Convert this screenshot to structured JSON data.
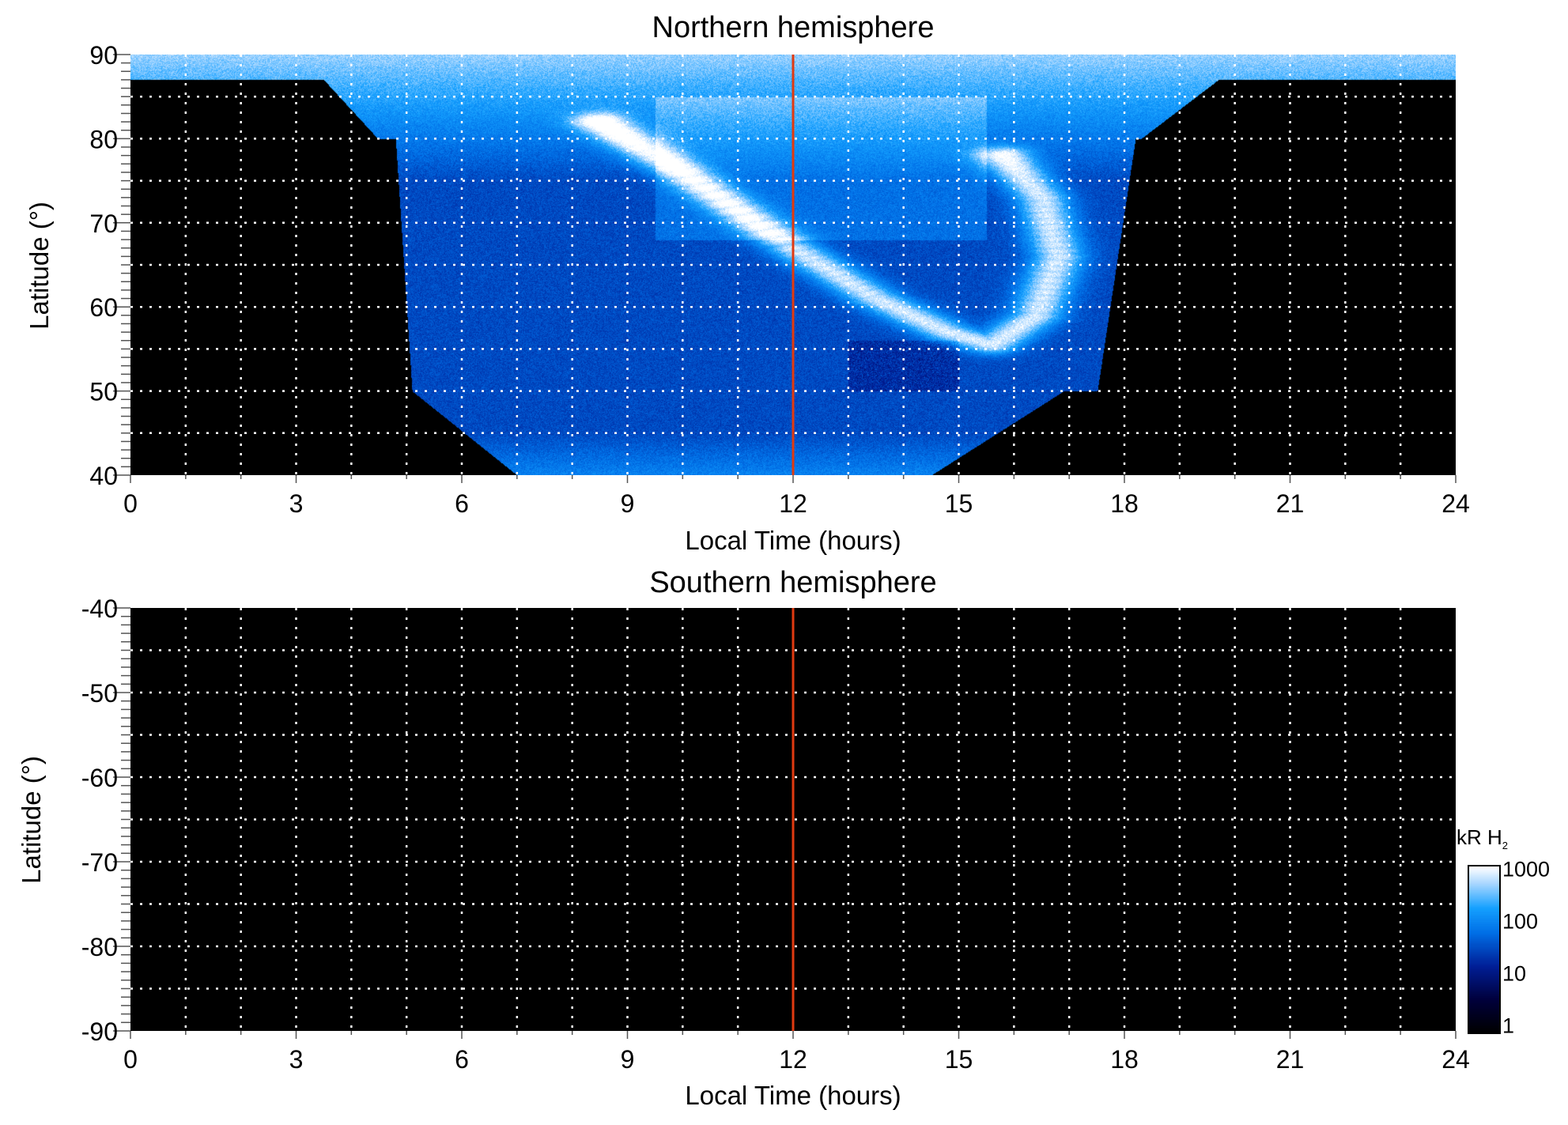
{
  "chart_data": [
    {
      "type": "heatmap",
      "title": "Northern hemisphere",
      "xlabel": "Local Time (hours)",
      "ylabel": "Latitude (°)",
      "xlim": [
        0,
        24
      ],
      "ylim": [
        40,
        90
      ],
      "xticks": [
        "0",
        "3",
        "6",
        "9",
        "12",
        "15",
        "18",
        "21",
        "24"
      ],
      "yticks": [
        "40",
        "50",
        "60",
        "70",
        "80",
        "90"
      ],
      "grid": "dotted, every 1 hour and 5 degrees",
      "reference_line": {
        "x": 12,
        "color": "#e03a10"
      },
      "features": "auroral emission oval; bright arc from ~8.5 LT/82° through 12 LT/67° to ~15.5 LT/55°, curving up to ~16 LT/78°; no coverage (black) on night side"
    },
    {
      "type": "heatmap",
      "title": "Southern hemisphere",
      "xlabel": "Local Time (hours)",
      "ylabel": "Latitude (°)",
      "xlim": [
        0,
        24
      ],
      "ylim": [
        -90,
        -40
      ],
      "xticks": [
        "0",
        "3",
        "6",
        "9",
        "12",
        "15",
        "18",
        "21",
        "24"
      ],
      "yticks": [
        "-40",
        "-50",
        "-60",
        "-70",
        "-80",
        "-90"
      ],
      "grid": "dotted, every 1 hour and 5 degrees",
      "reference_line": {
        "x": 12,
        "color": "#e03a10"
      },
      "features": "no data (all black)"
    }
  ],
  "colorbar": {
    "label": "kR H",
    "label_subscript": "2",
    "scale": "log",
    "range": [
      1,
      1000
    ],
    "ticks": [
      "1",
      "10",
      "100",
      "1000"
    ]
  },
  "colors": {
    "redline": "#e03a10"
  }
}
